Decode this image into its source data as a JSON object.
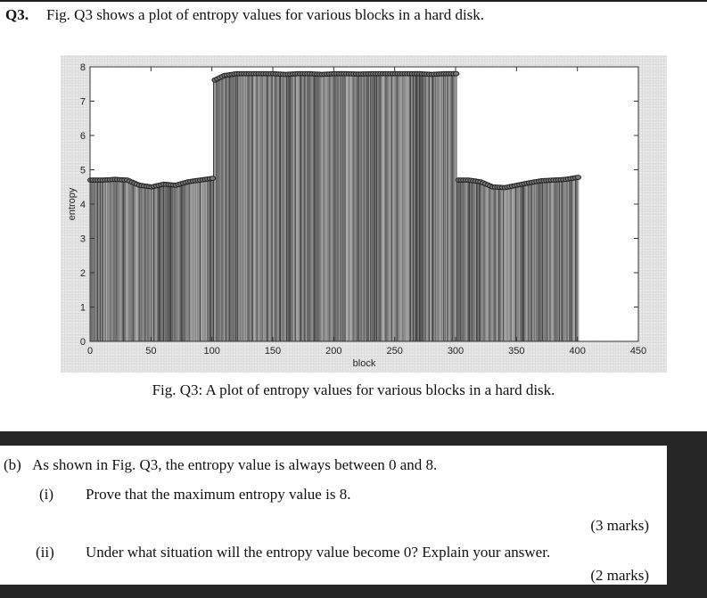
{
  "question": {
    "number": "Q3.",
    "intro": "Fig. Q3 shows a plot of entropy values for various blocks in a hard disk."
  },
  "figure": {
    "caption": "Fig. Q3: A plot of entropy values for various blocks in a hard disk."
  },
  "chart_data": {
    "type": "bar",
    "title": "",
    "xlabel": "block",
    "ylabel": "entropy",
    "xlim": [
      0,
      450
    ],
    "ylim": [
      0,
      8
    ],
    "xticks": [
      0,
      50,
      100,
      150,
      200,
      250,
      300,
      350,
      400,
      450
    ],
    "yticks": [
      0,
      1,
      2,
      3,
      4,
      5,
      6,
      7,
      8
    ],
    "grid": false,
    "legend": null,
    "x": [
      0,
      10,
      20,
      30,
      40,
      50,
      60,
      70,
      80,
      90,
      100,
      101,
      110,
      120,
      130,
      140,
      150,
      160,
      170,
      180,
      190,
      200,
      210,
      220,
      230,
      240,
      250,
      260,
      270,
      280,
      290,
      300,
      301,
      310,
      320,
      330,
      340,
      350,
      360,
      370,
      380,
      390,
      400
    ],
    "values": [
      4.7,
      4.7,
      4.72,
      4.7,
      4.55,
      4.5,
      4.58,
      4.55,
      4.65,
      4.7,
      4.75,
      7.6,
      7.75,
      7.8,
      7.8,
      7.8,
      7.8,
      7.78,
      7.8,
      7.8,
      7.78,
      7.8,
      7.8,
      7.79,
      7.8,
      7.8,
      7.8,
      7.8,
      7.8,
      7.78,
      7.8,
      7.8,
      4.7,
      4.7,
      4.65,
      4.5,
      4.48,
      4.55,
      4.62,
      4.68,
      4.7,
      4.72,
      4.78
    ],
    "segments": [
      {
        "blocks": "0-100",
        "approx_entropy": "4.5-4.8"
      },
      {
        "blocks": "100-300",
        "approx_entropy": "7.6-7.8"
      },
      {
        "blocks": "300-400",
        "approx_entropy": "4.5-4.8"
      }
    ]
  },
  "part_b": {
    "label": "(b)",
    "text": "As shown in Fig. Q3, the entropy value is always between 0 and 8.",
    "items": [
      {
        "num": "(i)",
        "text": "Prove that the maximum entropy value is 8.",
        "marks": "(3 marks)"
      },
      {
        "num": "(ii)",
        "text": "Under what situation will the entropy value become 0?  Explain your answer.",
        "marks": "(2 marks)"
      }
    ]
  }
}
